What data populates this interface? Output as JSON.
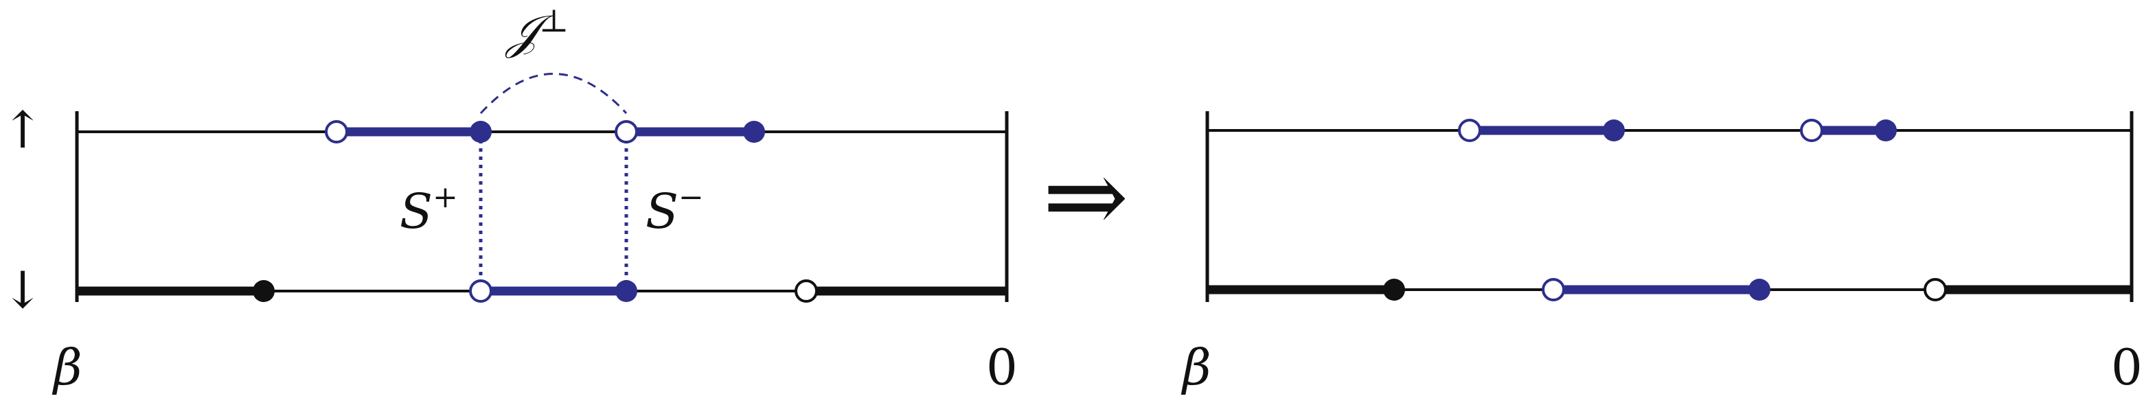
{
  "colors": {
    "blue": "#2e2e8c",
    "black": "#111111",
    "white": "#ffffff"
  },
  "labels": {
    "spin_up": "↑",
    "spin_down": "↓",
    "j_perp_base": "𝒥",
    "j_perp_sup": "⊥",
    "s_plus_base": "S",
    "s_plus_sup": "+",
    "s_minus_base": "S",
    "s_minus_sup": "−",
    "arrow": "⇒",
    "left_beta": "β",
    "left_zero": "0",
    "right_beta": "β",
    "right_zero": "0"
  }
}
